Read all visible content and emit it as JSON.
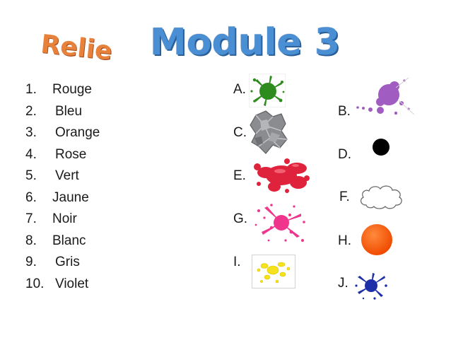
{
  "header": {
    "title": "Module 3",
    "subtitle": "Relie"
  },
  "colors": {
    "title": "#4a8fd4",
    "subtitle": "#e8823a",
    "green": "#2e8b1e",
    "purple": "#a15cc1",
    "grey": "#8a8c8f",
    "black": "#000000",
    "red": "#e0233c",
    "white": "#ffffff",
    "pink": "#f0358c",
    "orange": "#ff5a10",
    "yellow": "#f6e21a",
    "blue": "#1c2ea8"
  },
  "colors_list": [
    {
      "num": "1.",
      "word": "Rouge"
    },
    {
      "num": "2.",
      "word": "Bleu"
    },
    {
      "num": "3.",
      "word": "Orange"
    },
    {
      "num": "4.",
      "word": "Rose"
    },
    {
      "num": "5.",
      "word": "Vert"
    },
    {
      "num": "6.",
      "word": "Jaune"
    },
    {
      "num": "7.",
      "word": "Noir"
    },
    {
      "num": "8.",
      "word": "Blanc"
    },
    {
      "num": "9.",
      "word": "Gris"
    },
    {
      "num": "10.",
      "word": "Violet"
    }
  ],
  "answers": [
    {
      "letter": "A.",
      "icon": "green-splat-icon"
    },
    {
      "letter": "B.",
      "icon": "purple-splat-icon"
    },
    {
      "letter": "C.",
      "icon": "grey-crumpled-icon"
    },
    {
      "letter": "D.",
      "icon": "black-dot-icon"
    },
    {
      "letter": "E.",
      "icon": "red-splat-icon"
    },
    {
      "letter": "F.",
      "icon": "white-cloud-icon"
    },
    {
      "letter": "G.",
      "icon": "pink-splat-icon"
    },
    {
      "letter": "H.",
      "icon": "orange-circle-icon"
    },
    {
      "letter": "I.",
      "icon": "yellow-splat-icon"
    },
    {
      "letter": "J.",
      "icon": "blue-splat-icon"
    }
  ]
}
